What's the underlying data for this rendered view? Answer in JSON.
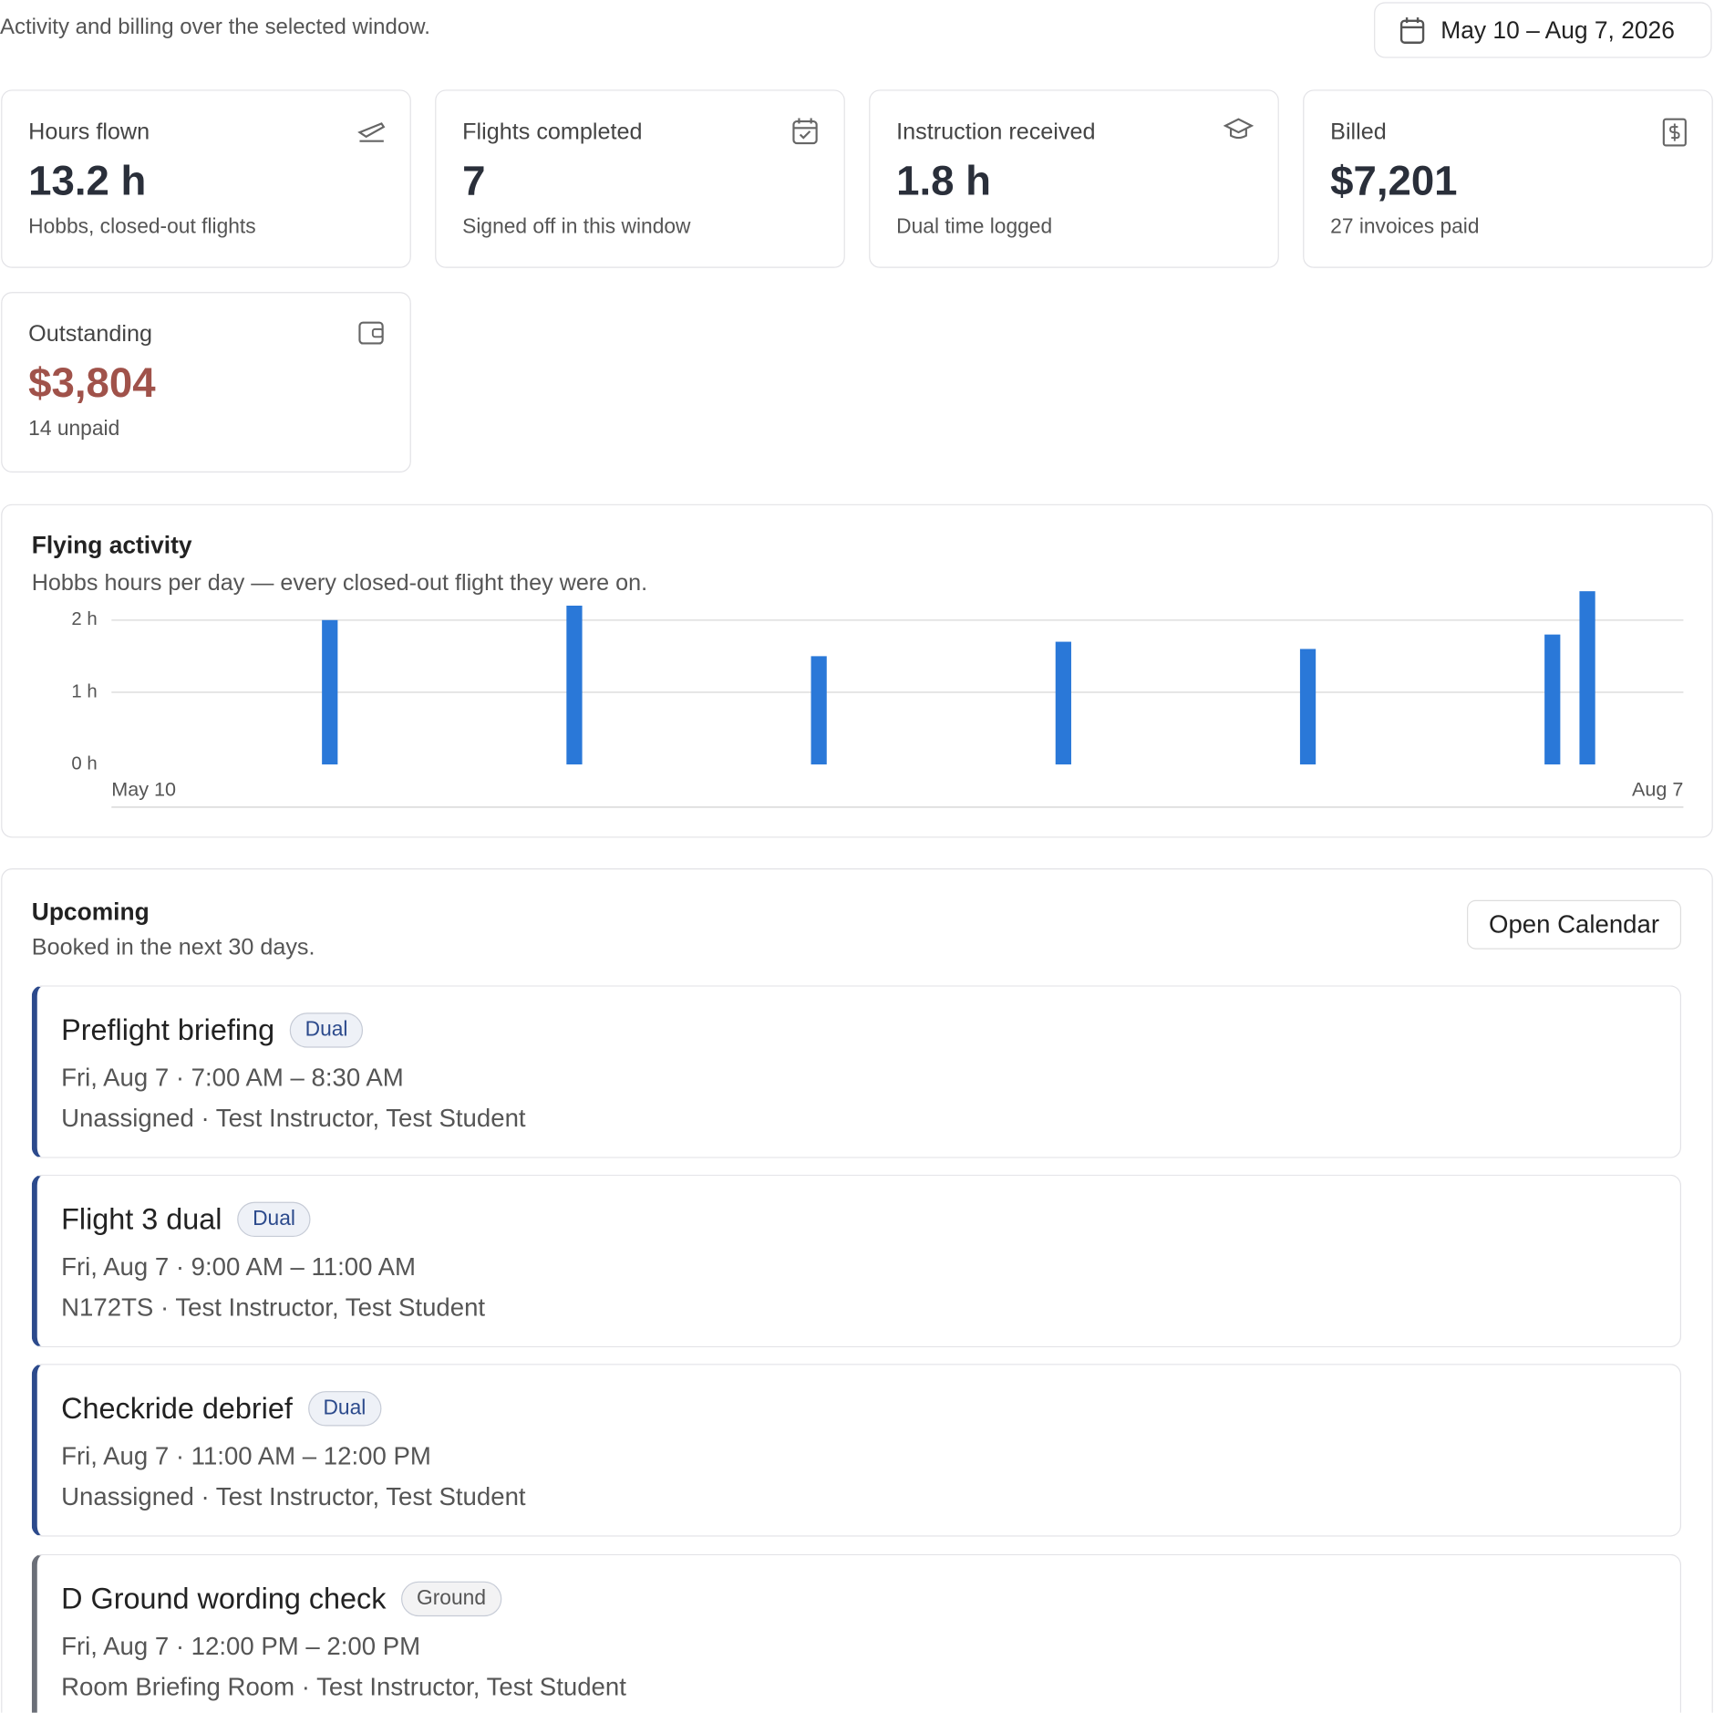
{
  "header": {
    "subtitle": "Activity and billing over the selected window.",
    "date_range": "May 10 – Aug 7, 2026"
  },
  "stats": [
    {
      "label": "Hours flown",
      "value": "13.2 h",
      "note": "Hobbs, closed-out flights"
    },
    {
      "label": "Flights completed",
      "value": "7",
      "note": "Signed off in this window"
    },
    {
      "label": "Instruction received",
      "value": "1.8 h",
      "note": "Dual time logged"
    },
    {
      "label": "Billed",
      "value": "$7,201",
      "note": "27 invoices paid"
    },
    {
      "label": "Outstanding",
      "value": "$3,804",
      "note": "14 unpaid"
    }
  ],
  "chart_data": {
    "type": "bar",
    "title": "Flying activity",
    "subtitle": "Hobbs hours per day — every closed-out flight they were on.",
    "categories": [
      "May 10",
      null,
      null,
      null,
      null,
      null,
      null,
      null,
      null,
      null,
      null,
      null,
      null,
      null,
      null,
      null,
      null,
      null,
      null,
      null,
      null,
      null,
      null,
      null,
      null,
      null,
      null,
      null,
      null,
      null,
      null,
      null,
      null,
      null,
      null,
      null,
      null,
      null,
      null,
      null,
      null,
      null,
      null,
      null,
      null,
      null,
      null,
      null,
      null,
      null,
      null,
      null,
      null,
      null,
      null,
      null,
      null,
      null,
      null,
      null,
      null,
      null,
      null,
      null,
      null,
      null,
      null,
      null,
      null,
      null,
      null,
      null,
      null,
      null,
      null,
      null,
      null,
      null,
      null,
      null,
      null,
      null,
      null,
      null,
      null,
      null,
      null,
      null,
      null,
      "Aug 7"
    ],
    "values": [
      0,
      0,
      0,
      0,
      0,
      0,
      0,
      0,
      0,
      0,
      0,
      0,
      2.0,
      0,
      0,
      0,
      0,
      0,
      0,
      0,
      0,
      0,
      0,
      0,
      0,
      0,
      2.2,
      0,
      0,
      0,
      0,
      0,
      0,
      0,
      0,
      0,
      0,
      0,
      0,
      0,
      1.5,
      0,
      0,
      0,
      0,
      0,
      0,
      0,
      0,
      0,
      0,
      0,
      0,
      0,
      1.7,
      0,
      0,
      0,
      0,
      0,
      0,
      0,
      0,
      0,
      0,
      0,
      0,
      0,
      1.6,
      0,
      0,
      0,
      0,
      0,
      0,
      0,
      0,
      0,
      0,
      0,
      0,
      0,
      1.8,
      0,
      2.4,
      0,
      0,
      0,
      0,
      0
    ],
    "color": "#2a78d8",
    "ylim": [
      0,
      2
    ],
    "yticks": [
      {
        "value": 0,
        "label": "0 h"
      },
      {
        "value": 1,
        "label": "1 h"
      },
      {
        "value": 2,
        "label": "2 h"
      }
    ],
    "grid": true
  },
  "upcoming": {
    "title": "Upcoming",
    "subtitle": "Booked in the next 30 days.",
    "button": "Open Calendar",
    "items": [
      {
        "title": "Preflight briefing",
        "tag": "Dual",
        "time": "Fri, Aug 7 · 7:00 AM – 8:30 AM",
        "details": "Unassigned · Test Instructor, Test Student"
      },
      {
        "title": "Flight 3 dual",
        "tag": "Dual",
        "time": "Fri, Aug 7 · 9:00 AM – 11:00 AM",
        "details": "N172TS · Test Instructor, Test Student"
      },
      {
        "title": "Checkride debrief",
        "tag": "Dual",
        "time": "Fri, Aug 7 · 11:00 AM – 12:00 PM",
        "details": "Unassigned · Test Instructor, Test Student"
      },
      {
        "title": "D Ground wording check",
        "tag": "Ground",
        "time": "Fri, Aug 7 · 12:00 PM – 2:00 PM",
        "details": "Room Briefing Room · Test Instructor, Test Student"
      }
    ]
  }
}
